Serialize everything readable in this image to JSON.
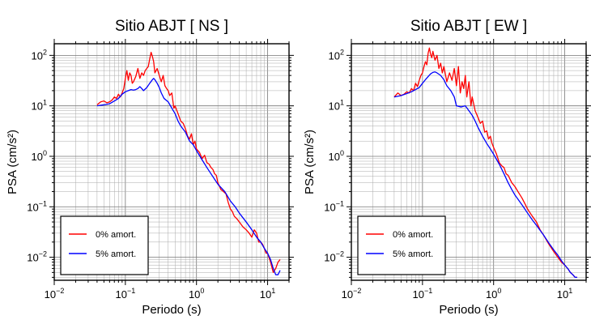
{
  "chart_data": [
    {
      "type": "line",
      "title": "Sitio ABJT [ NS ]",
      "xlabel": "Periodo (s)",
      "ylabel": "PSA (cm/s²)",
      "xscale": "log",
      "yscale": "log",
      "xlim": [
        0.01,
        20
      ],
      "ylim": [
        0.0035,
        170
      ],
      "grid": true,
      "legend_position": "bottom-left",
      "x_ticks": [
        {
          "base": "10",
          "exp": "−2"
        },
        {
          "base": "10",
          "exp": "−1"
        },
        {
          "base": "10",
          "exp": "0"
        },
        {
          "base": "10",
          "exp": "1"
        }
      ],
      "y_ticks": [
        {
          "base": "10",
          "exp": "−2"
        },
        {
          "base": "10",
          "exp": "−1"
        },
        {
          "base": "10",
          "exp": "0"
        },
        {
          "base": "10",
          "exp": "1"
        },
        {
          "base": "10",
          "exp": "2"
        }
      ],
      "series": [
        {
          "name": "0% amort.",
          "color": "#ff0000",
          "x": [
            0.04,
            0.045,
            0.05,
            0.055,
            0.06,
            0.065,
            0.07,
            0.075,
            0.08,
            0.085,
            0.09,
            0.095,
            0.1,
            0.105,
            0.11,
            0.115,
            0.12,
            0.125,
            0.13,
            0.14,
            0.15,
            0.16,
            0.17,
            0.18,
            0.19,
            0.2,
            0.21,
            0.22,
            0.23,
            0.24,
            0.25,
            0.26,
            0.28,
            0.3,
            0.32,
            0.34,
            0.36,
            0.38,
            0.4,
            0.42,
            0.45,
            0.48,
            0.5,
            0.55,
            0.6,
            0.65,
            0.7,
            0.75,
            0.8,
            0.85,
            0.9,
            0.95,
            1.0,
            1.1,
            1.2,
            1.3,
            1.4,
            1.5,
            1.6,
            1.7,
            1.8,
            1.9,
            2.0,
            2.2,
            2.4,
            2.6,
            2.8,
            3.0,
            3.2,
            3.4,
            3.6,
            3.8,
            4.0,
            4.5,
            5.0,
            5.5,
            6.0,
            6.5,
            7.0,
            7.5,
            8.0,
            8.5,
            9.0,
            9.5,
            10,
            11,
            12,
            13,
            14,
            15
          ],
          "y": [
            10.5,
            12,
            12.5,
            11.5,
            12,
            13,
            15,
            14,
            17,
            15,
            18,
            22,
            35,
            50,
            32,
            45,
            40,
            28,
            30,
            38,
            55,
            35,
            45,
            40,
            50,
            55,
            60,
            85,
            115,
            95,
            75,
            45,
            55,
            40,
            30,
            40,
            25,
            22,
            20,
            16,
            18,
            9,
            10,
            7,
            5,
            4.5,
            3.5,
            2.5,
            2.2,
            2.8,
            1.7,
            2.0,
            1.4,
            1.2,
            0.9,
            1.05,
            0.75,
            0.7,
            0.6,
            0.55,
            0.45,
            0.42,
            0.3,
            0.22,
            0.2,
            0.18,
            0.12,
            0.09,
            0.08,
            0.065,
            0.06,
            0.055,
            0.05,
            0.04,
            0.035,
            0.03,
            0.025,
            0.035,
            0.03,
            0.02,
            0.02,
            0.018,
            0.015,
            0.012,
            0.012,
            0.008,
            0.005,
            0.006,
            0.008,
            0.009
          ]
        },
        {
          "name": "5% amort.",
          "color": "#0000ff",
          "x": [
            0.04,
            0.05,
            0.06,
            0.07,
            0.08,
            0.09,
            0.1,
            0.11,
            0.12,
            0.13,
            0.14,
            0.15,
            0.16,
            0.17,
            0.18,
            0.2,
            0.22,
            0.24,
            0.25,
            0.26,
            0.28,
            0.3,
            0.32,
            0.35,
            0.4,
            0.45,
            0.5,
            0.55,
            0.6,
            0.7,
            0.8,
            0.9,
            1.0,
            1.2,
            1.4,
            1.6,
            1.8,
            2.0,
            2.5,
            3.0,
            3.5,
            4.0,
            5.0,
            6.0,
            7.0,
            8.0,
            9.0,
            10,
            11,
            12,
            13,
            14,
            15
          ],
          "y": [
            10,
            10.5,
            11,
            12.5,
            14,
            17,
            19,
            20,
            21,
            20.5,
            21,
            22,
            24,
            22,
            20,
            23,
            28,
            33,
            35,
            33,
            28,
            23,
            18,
            14,
            12,
            9,
            7,
            5,
            4,
            3,
            2,
            1.7,
            1.3,
            0.85,
            0.6,
            0.45,
            0.35,
            0.28,
            0.2,
            0.13,
            0.1,
            0.075,
            0.05,
            0.035,
            0.025,
            0.02,
            0.015,
            0.012,
            0.009,
            0.006,
            0.0045,
            0.0045,
            0.0055
          ]
        }
      ]
    },
    {
      "type": "line",
      "title": "Sitio ABJT [ EW ]",
      "xlabel": "Periodo (s)",
      "ylabel": "PSA (cm/s²)",
      "xscale": "log",
      "yscale": "log",
      "xlim": [
        0.01,
        20
      ],
      "ylim": [
        0.0035,
        170
      ],
      "grid": true,
      "legend_position": "bottom-left",
      "x_ticks": [
        {
          "base": "10",
          "exp": "−2"
        },
        {
          "base": "10",
          "exp": "−1"
        },
        {
          "base": "10",
          "exp": "0"
        },
        {
          "base": "10",
          "exp": "1"
        }
      ],
      "y_ticks": [
        {
          "base": "10",
          "exp": "−2"
        },
        {
          "base": "10",
          "exp": "−1"
        },
        {
          "base": "10",
          "exp": "0"
        },
        {
          "base": "10",
          "exp": "1"
        },
        {
          "base": "10",
          "exp": "2"
        }
      ],
      "series": [
        {
          "name": "0% amort.",
          "color": "#ff0000",
          "x": [
            0.04,
            0.045,
            0.05,
            0.055,
            0.06,
            0.065,
            0.07,
            0.075,
            0.08,
            0.085,
            0.09,
            0.095,
            0.1,
            0.105,
            0.11,
            0.115,
            0.12,
            0.125,
            0.13,
            0.135,
            0.14,
            0.15,
            0.16,
            0.17,
            0.18,
            0.19,
            0.2,
            0.22,
            0.24,
            0.26,
            0.28,
            0.3,
            0.32,
            0.34,
            0.36,
            0.38,
            0.4,
            0.42,
            0.45,
            0.48,
            0.5,
            0.55,
            0.6,
            0.65,
            0.7,
            0.75,
            0.8,
            0.85,
            0.9,
            0.95,
            1.0,
            1.1,
            1.2,
            1.3,
            1.4,
            1.5,
            1.6,
            1.8,
            2.0,
            2.2,
            2.5,
            2.8,
            3.0,
            3.5,
            4.0,
            4.5,
            5.0,
            6.0,
            7.0,
            8.0,
            9.0,
            10,
            11,
            12,
            13,
            14,
            15
          ],
          "y": [
            15,
            18,
            16,
            17,
            19,
            18,
            22,
            20,
            28,
            24,
            32,
            40,
            45,
            60,
            75,
            65,
            110,
            140,
            105,
            90,
            120,
            80,
            100,
            55,
            70,
            45,
            60,
            30,
            45,
            32,
            55,
            25,
            60,
            18,
            30,
            22,
            40,
            15,
            30,
            10,
            15,
            8,
            6,
            4.5,
            5,
            3,
            3.2,
            2.2,
            2.5,
            1.8,
            1.5,
            1.1,
            0.75,
            0.65,
            0.6,
            0.45,
            0.42,
            0.3,
            0.25,
            0.2,
            0.15,
            0.11,
            0.09,
            0.065,
            0.05,
            0.035,
            0.028,
            0.018,
            0.013,
            0.01,
            0.008,
            0.007,
            0.006,
            0.005,
            0.0045,
            0.004,
            0.004
          ]
        },
        {
          "name": "5% amort.",
          "color": "#0000ff",
          "x": [
            0.04,
            0.05,
            0.06,
            0.07,
            0.08,
            0.09,
            0.1,
            0.11,
            0.12,
            0.13,
            0.14,
            0.15,
            0.16,
            0.18,
            0.2,
            0.22,
            0.25,
            0.28,
            0.3,
            0.35,
            0.4,
            0.45,
            0.5,
            0.55,
            0.6,
            0.7,
            0.8,
            0.9,
            1.0,
            1.2,
            1.4,
            1.6,
            1.8,
            2.0,
            2.5,
            3.0,
            3.5,
            4.0,
            5.0,
            6.0,
            7.0,
            8.0,
            9.0,
            10,
            11,
            12,
            13,
            14,
            15
          ],
          "y": [
            15,
            16,
            17.5,
            19,
            21,
            23,
            28,
            33,
            38,
            43,
            46,
            47,
            45,
            40,
            33,
            25,
            20,
            15,
            10,
            9.5,
            10,
            8,
            6.5,
            5,
            3.8,
            2.5,
            1.8,
            1.4,
            1.1,
            0.7,
            0.45,
            0.3,
            0.22,
            0.17,
            0.11,
            0.075,
            0.055,
            0.043,
            0.028,
            0.019,
            0.014,
            0.011,
            0.0085,
            0.007,
            0.006,
            0.005,
            0.0045,
            0.004,
            0.004
          ]
        }
      ]
    }
  ]
}
